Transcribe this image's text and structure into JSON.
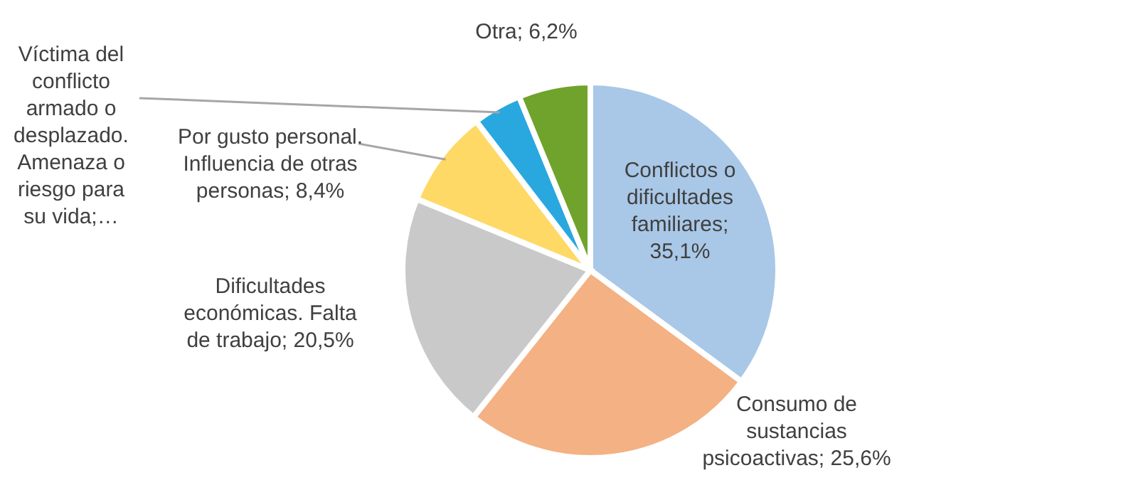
{
  "chart_data": {
    "type": "pie",
    "categories": [
      "Conflictos o dificultades familiares",
      "Consumo de sustancias psicoactivas",
      "Dificultades económicas. Falta de trabajo",
      "Por gusto personal. Influencia de otras personas",
      "Víctima del conflicto armado o desplazado. Amenaza o riesgo para su vida",
      "Otra"
    ],
    "values": [
      35.1,
      25.6,
      20.5,
      8.4,
      4.2,
      6.2
    ],
    "value_labels": [
      "; 35,1%",
      "; 25,6%",
      "; 20,5%",
      "; 8,4%",
      ";…",
      "; 6,2%"
    ],
    "colors": [
      "#a9c8e8",
      "#f4b183",
      "#c9c9c9",
      "#ffd966",
      "#29a8e0",
      "#70a32b"
    ]
  }
}
